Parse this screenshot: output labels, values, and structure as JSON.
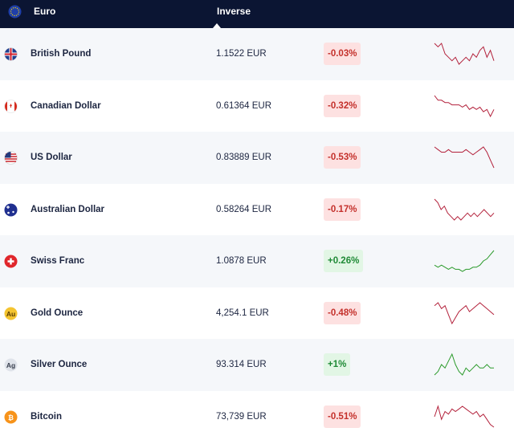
{
  "header": {
    "base": "Euro",
    "inverse": "Inverse"
  },
  "rows": [
    {
      "name": "British Pound",
      "price": "1.1522 EUR",
      "change": "-0.03%",
      "sparkline": [
        9,
        8,
        9,
        6,
        5,
        4,
        5,
        3,
        4,
        5,
        4,
        6,
        5,
        7,
        8,
        5,
        7,
        4
      ]
    },
    {
      "name": "Canadian Dollar",
      "price": "0.61364 EUR",
      "change": "-0.32%",
      "sparkline": [
        9,
        7,
        7,
        6,
        6,
        5,
        5,
        5,
        4,
        5,
        3,
        4,
        3,
        4,
        2,
        3,
        0,
        3
      ]
    },
    {
      "name": "US Dollar",
      "price": "0.83889 EUR",
      "change": "-0.53%",
      "sparkline": [
        8,
        7,
        6,
        6,
        7,
        6,
        6,
        6,
        6,
        7,
        6,
        5,
        6,
        7,
        8,
        6,
        3,
        0
      ]
    },
    {
      "name": "Australian Dollar",
      "price": "0.58264 EUR",
      "change": "-0.17%",
      "sparkline": [
        9,
        8,
        6,
        7,
        5,
        4,
        3,
        4,
        3,
        4,
        5,
        4,
        5,
        4,
        5,
        6,
        5,
        4,
        5
      ]
    },
    {
      "name": "Swiss Franc",
      "price": "1.0878 EUR",
      "change": "+0.26%",
      "sparkline": [
        3,
        2,
        3,
        2,
        1,
        2,
        1,
        1,
        0,
        1,
        1,
        2,
        2,
        3,
        5,
        6,
        8,
        10
      ]
    },
    {
      "name": "Gold Ounce",
      "price": "4,254.1 EUR",
      "change": "-0.48%",
      "icon_text": "Au",
      "sparkline": [
        7,
        8,
        6,
        7,
        4,
        1,
        3,
        5,
        6,
        7,
        5,
        6,
        7,
        8,
        7,
        6,
        5,
        4
      ]
    },
    {
      "name": "Silver Ounce",
      "price": "93.314 EUR",
      "change": "+1%",
      "icon_text": "Ag",
      "sparkline": [
        3,
        4,
        6,
        5,
        7,
        9,
        6,
        4,
        3,
        5,
        4,
        5,
        6,
        5,
        5,
        6,
        5,
        5
      ]
    },
    {
      "name": "Bitcoin",
      "price": "73,739 EUR",
      "change": "-0.51%",
      "icon_text": "₿",
      "sparkline": [
        5,
        9,
        4,
        7,
        6,
        8,
        7,
        8,
        9,
        8,
        7,
        6,
        7,
        5,
        6,
        4,
        2,
        1
      ]
    }
  ]
}
